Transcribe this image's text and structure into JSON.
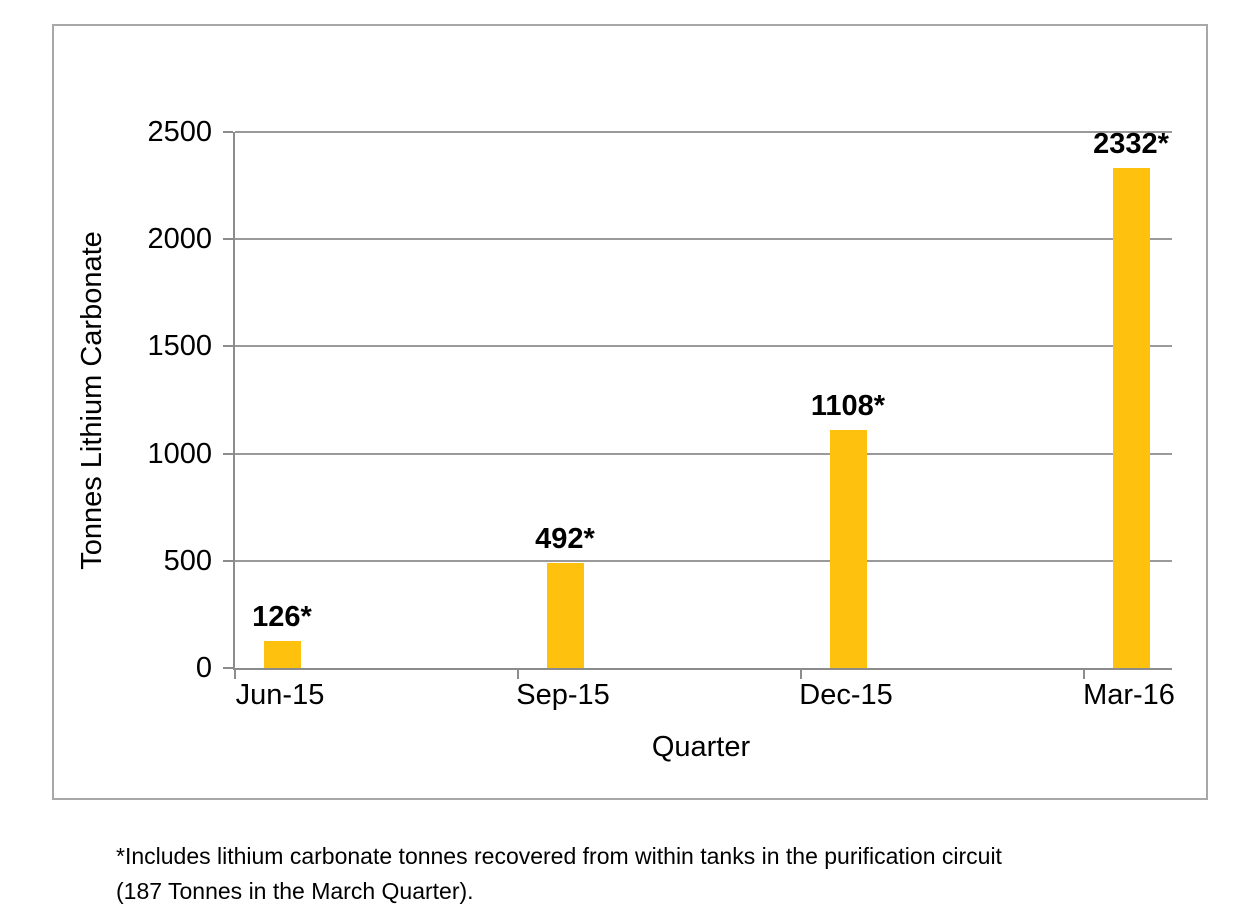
{
  "chart_data": {
    "type": "bar",
    "title": "",
    "xlabel": "Quarter",
    "ylabel": "Tonnes Lithium Carbonate",
    "categories": [
      "Jun-15",
      "Sep-15",
      "Dec-15",
      "Mar-16"
    ],
    "values": [
      126,
      492,
      1108,
      2332
    ],
    "data_labels": [
      "126*",
      "492*",
      "1108*",
      "2332*"
    ],
    "ylim": [
      0,
      2500
    ],
    "y_ticks": [
      0,
      500,
      1000,
      1500,
      2000,
      2500
    ],
    "grid": true,
    "legend": false
  },
  "footnote": {
    "line1": "*Includes lithium carbonate tonnes recovered from within tanks in the purification circuit",
    "line2": "(187 Tonnes in the March Quarter)."
  },
  "colors": {
    "bar": "#FEC10D",
    "gridline": "#9A9A9A",
    "axis": "#8C8C8C",
    "frame_border": "#A8A8A8",
    "text": "#000000",
    "background": "#FFFFFF"
  }
}
